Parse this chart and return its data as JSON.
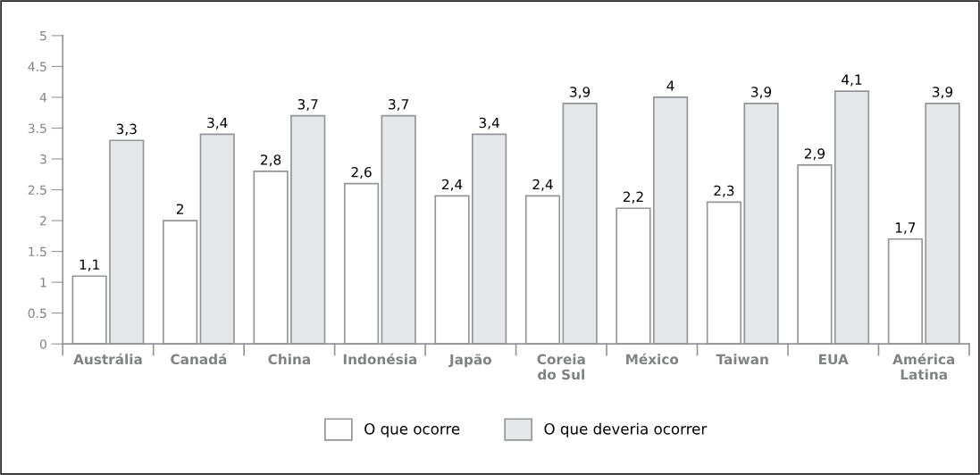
{
  "chart_data": {
    "type": "bar",
    "categories": [
      "Austrália",
      "Canadá",
      "China",
      "Indonésia",
      "Japão",
      "Coreia\ndo Sul",
      "México",
      "Taiwan",
      "EUA",
      "América\nLatina"
    ],
    "series": [
      {
        "name": "O que ocorre",
        "color": "#ffffff",
        "values": [
          1.1,
          2,
          2.8,
          2.6,
          2.4,
          2.4,
          2.2,
          2.3,
          2.9,
          1.7
        ],
        "value_labels": [
          "1,1",
          "2",
          "2,8",
          "2,6",
          "2,4",
          "2,4",
          "2,2",
          "2,3",
          "2,9",
          "1,7"
        ]
      },
      {
        "name": "O que deveria ocorrer",
        "color": "#e6e7e8",
        "values": [
          3.3,
          3.4,
          3.7,
          3.7,
          3.4,
          3.9,
          4,
          3.9,
          4.1,
          3.9
        ],
        "value_labels": [
          "3,3",
          "3,4",
          "3,7",
          "3,7",
          "3,4",
          "3,9",
          "4",
          "3,9",
          "4,1",
          "3,9"
        ]
      }
    ],
    "ylim": [
      0,
      5
    ],
    "yticks": [
      0,
      0.5,
      1,
      1.5,
      2,
      2.5,
      3,
      3.5,
      4,
      4.5,
      5
    ],
    "grid": false,
    "legend": "bottom"
  }
}
